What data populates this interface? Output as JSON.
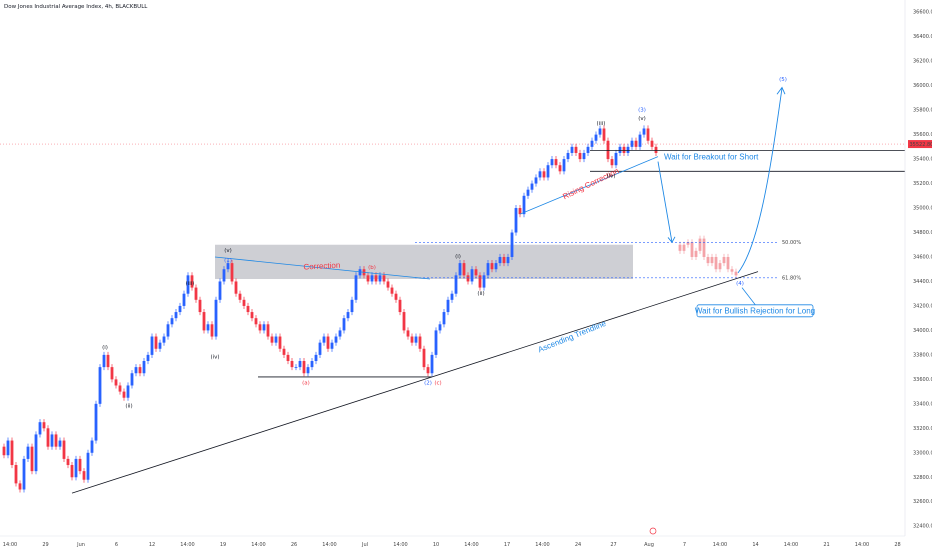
{
  "header": {
    "title": "Dow Jones Industrial Average Index, 4h, BLACKBULL"
  },
  "colors": {
    "up": "#2962ff",
    "down": "#f23645",
    "trend": "#131722",
    "zone": "#c6c7cc",
    "annotation_blue": "#1e88e5",
    "annotation_red": "#f23645"
  },
  "chart_data": {
    "type": "candlestick",
    "title": "Dow Jones Industrial Average Index, 4h, BLACKBULL",
    "y_ticks": [
      32400,
      32600,
      32800,
      33000,
      33200,
      33400,
      33600,
      33800,
      34000,
      34200,
      34400,
      34600,
      34800,
      35000,
      35200,
      35400,
      35600,
      35800,
      36000,
      36200,
      36400,
      36600
    ],
    "ylim": [
      32320,
      36700
    ],
    "x_ticks": [
      "14:00",
      "29",
      "Jun",
      "6",
      "12",
      "14:00",
      "19",
      "14:00",
      "26",
      "14:00",
      "Jul",
      "14:00",
      "10",
      "14:00",
      "17",
      "14:00",
      "24",
      "27",
      "Aug",
      "7",
      "14:00",
      "14",
      "14:00",
      "21",
      "14:00",
      "28"
    ],
    "current_price": "35522.80",
    "fib_levels": [
      {
        "label": "50.00%",
        "value": 34720
      },
      {
        "label": "61.80%",
        "value": 34430
      }
    ],
    "resistance_zone": [
      34420,
      34700
    ],
    "wave_labels": [
      "(i)",
      "(ii)",
      "(iii)",
      "(iv)",
      "(v)",
      "(1)",
      "(a)",
      "(b)",
      "(c)",
      "(2)",
      "(i)",
      "(ii)",
      "(iii)",
      "(iv)",
      "(v)",
      "(3)",
      "(4)",
      "(5)"
    ],
    "annotations": {
      "correction": "Correction",
      "rising_correction": "Rising Correction",
      "ascending_trendline": "Ascending Trendline",
      "breakout_short": "Wait for Breakout for Short",
      "bullish_rejection": "Wait for Bullish Rejection for Long"
    },
    "path_points": [
      [
        0,
        33050
      ],
      [
        4,
        32980
      ],
      [
        8,
        33100
      ],
      [
        12,
        32900
      ],
      [
        16,
        32750
      ],
      [
        20,
        32700
      ],
      [
        24,
        32950
      ],
      [
        28,
        33050
      ],
      [
        32,
        32850
      ],
      [
        36,
        33150
      ],
      [
        40,
        33250
      ],
      [
        44,
        33200
      ],
      [
        48,
        33050
      ],
      [
        52,
        33150
      ],
      [
        56,
        33050
      ],
      [
        60,
        33100
      ],
      [
        64,
        32950
      ],
      [
        68,
        32900
      ],
      [
        72,
        32800
      ],
      [
        76,
        32950
      ],
      [
        80,
        32850
      ],
      [
        84,
        32780
      ],
      [
        88,
        33000
      ],
      [
        92,
        33100
      ],
      [
        96,
        33400
      ],
      [
        100,
        33700
      ],
      [
        104,
        33800
      ],
      [
        108,
        33700
      ],
      [
        112,
        33600
      ],
      [
        116,
        33550
      ],
      [
        120,
        33500
      ],
      [
        124,
        33450
      ],
      [
        128,
        33550
      ],
      [
        132,
        33650
      ],
      [
        136,
        33700
      ],
      [
        140,
        33650
      ],
      [
        144,
        33750
      ],
      [
        148,
        33800
      ],
      [
        152,
        33950
      ],
      [
        156,
        33850
      ],
      [
        160,
        33900
      ],
      [
        164,
        33950
      ],
      [
        168,
        34050
      ],
      [
        172,
        34100
      ],
      [
        176,
        34150
      ],
      [
        180,
        34200
      ],
      [
        184,
        34300
      ],
      [
        188,
        34450
      ],
      [
        192,
        34350
      ],
      [
        196,
        34250
      ],
      [
        200,
        34150
      ],
      [
        204,
        34000
      ],
      [
        208,
        34050
      ],
      [
        212,
        33950
      ],
      [
        216,
        34250
      ],
      [
        220,
        34400
      ],
      [
        224,
        34500
      ],
      [
        228,
        34550
      ],
      [
        232,
        34400
      ],
      [
        236,
        34300
      ],
      [
        240,
        34250
      ],
      [
        244,
        34200
      ],
      [
        248,
        34150
      ],
      [
        252,
        34100
      ],
      [
        256,
        34050
      ],
      [
        260,
        34000
      ],
      [
        264,
        34050
      ],
      [
        268,
        33950
      ],
      [
        272,
        33900
      ],
      [
        276,
        33950
      ],
      [
        280,
        33850
      ],
      [
        284,
        33800
      ],
      [
        288,
        33750
      ],
      [
        292,
        33700
      ],
      [
        296,
        33700
      ],
      [
        300,
        33750
      ],
      [
        304,
        33650
      ],
      [
        308,
        33700
      ],
      [
        312,
        33750
      ],
      [
        316,
        33800
      ],
      [
        320,
        33900
      ],
      [
        324,
        33950
      ],
      [
        328,
        33850
      ],
      [
        332,
        33900
      ],
      [
        336,
        33950
      ],
      [
        340,
        34000
      ],
      [
        344,
        34100
      ],
      [
        348,
        34150
      ],
      [
        352,
        34250
      ],
      [
        356,
        34450
      ],
      [
        360,
        34500
      ],
      [
        364,
        34450
      ],
      [
        368,
        34400
      ],
      [
        372,
        34450
      ],
      [
        376,
        34400
      ],
      [
        380,
        34450
      ],
      [
        384,
        34400
      ],
      [
        388,
        34350
      ],
      [
        392,
        34300
      ],
      [
        396,
        34250
      ],
      [
        400,
        34150
      ],
      [
        404,
        34000
      ],
      [
        408,
        33950
      ],
      [
        412,
        33900
      ],
      [
        416,
        33950
      ],
      [
        420,
        33850
      ],
      [
        424,
        33700
      ],
      [
        428,
        33650
      ],
      [
        432,
        33800
      ],
      [
        436,
        34000
      ],
      [
        440,
        34050
      ],
      [
        444,
        34150
      ],
      [
        448,
        34250
      ],
      [
        452,
        34300
      ],
      [
        456,
        34450
      ],
      [
        460,
        34550
      ],
      [
        464,
        34450
      ],
      [
        468,
        34400
      ],
      [
        472,
        34500
      ],
      [
        476,
        34450
      ],
      [
        480,
        34350
      ],
      [
        484,
        34450
      ],
      [
        488,
        34550
      ],
      [
        492,
        34500
      ],
      [
        496,
        34550
      ],
      [
        500,
        34600
      ],
      [
        504,
        34550
      ],
      [
        508,
        34600
      ],
      [
        512,
        34800
      ],
      [
        516,
        35000
      ],
      [
        520,
        34950
      ],
      [
        524,
        35100
      ],
      [
        528,
        35150
      ],
      [
        532,
        35200
      ],
      [
        536,
        35250
      ],
      [
        540,
        35300
      ],
      [
        544,
        35250
      ],
      [
        548,
        35350
      ],
      [
        552,
        35400
      ],
      [
        556,
        35350
      ],
      [
        560,
        35300
      ],
      [
        564,
        35400
      ],
      [
        568,
        35450
      ],
      [
        572,
        35500
      ],
      [
        576,
        35450
      ],
      [
        580,
        35400
      ],
      [
        584,
        35450
      ],
      [
        588,
        35500
      ],
      [
        592,
        35550
      ],
      [
        596,
        35600
      ],
      [
        600,
        35650
      ],
      [
        604,
        35550
      ],
      [
        608,
        35400
      ],
      [
        612,
        35350
      ],
      [
        616,
        35450
      ],
      [
        620,
        35500
      ],
      [
        624,
        35450
      ],
      [
        628,
        35500
      ],
      [
        632,
        35550
      ],
      [
        636,
        35500
      ],
      [
        640,
        35600
      ],
      [
        644,
        35650
      ],
      [
        648,
        35550
      ],
      [
        652,
        35500
      ],
      [
        656,
        35450
      ]
    ],
    "projection_points": [
      [
        676,
        34700
      ],
      [
        680,
        34650
      ],
      [
        684,
        34700
      ],
      [
        688,
        34720
      ],
      [
        692,
        34600
      ],
      [
        696,
        34650
      ],
      [
        700,
        34750
      ],
      [
        704,
        34600
      ],
      [
        708,
        34550
      ],
      [
        712,
        34600
      ],
      [
        716,
        34500
      ],
      [
        720,
        34550
      ],
      [
        724,
        34600
      ],
      [
        728,
        34500
      ],
      [
        732,
        34480
      ],
      [
        736,
        34450
      ]
    ]
  }
}
